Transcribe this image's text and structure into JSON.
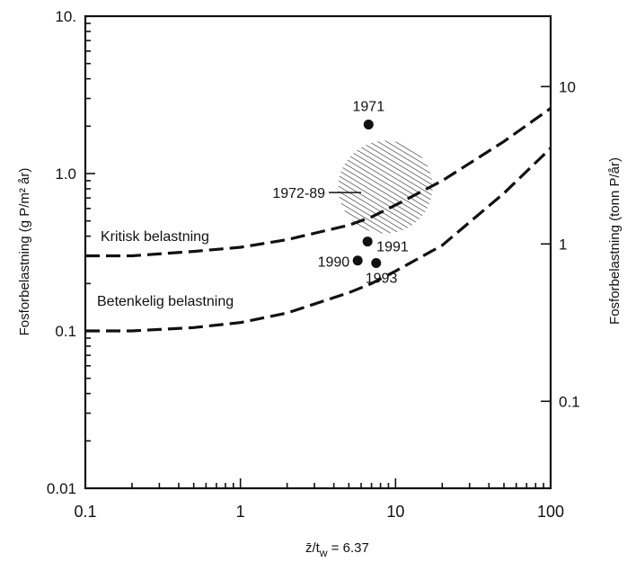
{
  "chart_data": {
    "type": "scatter",
    "title": "",
    "xlabel_parts": {
      "zbar": "z̄",
      "slash": "/t",
      "sub": "w",
      "eq": " = 6.37"
    },
    "ylabel": "Fosforbelastning (g P/m² år)",
    "y2label": "Fosforbelastning (tonn P/år)",
    "x_scale": "log",
    "y_scale": "log",
    "xlim": [
      0.1,
      100
    ],
    "ylim": [
      0.01,
      10
    ],
    "x_ticks": [
      {
        "value": 0.1,
        "label": "0.1"
      },
      {
        "value": 1,
        "label": "1"
      },
      {
        "value": 10,
        "label": "10"
      },
      {
        "value": 100,
        "label": "100"
      }
    ],
    "y_ticks": [
      {
        "value": 0.01,
        "label": "0.01"
      },
      {
        "value": 0.1,
        "label": "0.1"
      },
      {
        "value": 1,
        "label": "1.0"
      },
      {
        "value": 10,
        "label": "10."
      }
    ],
    "y2_ticks": [
      {
        "value": 0.0357,
        "label": "0.1"
      },
      {
        "value": 0.357,
        "label": "1"
      },
      {
        "value": 3.57,
        "label": "10"
      }
    ],
    "grid": false,
    "series": [
      {
        "name": "Kritisk belastning",
        "style": "dashed",
        "x": [
          0.1,
          0.2,
          0.5,
          1,
          2,
          5,
          7,
          10,
          20,
          50,
          100
        ],
        "y": [
          0.3,
          0.3,
          0.32,
          0.34,
          0.38,
          0.47,
          0.53,
          0.63,
          0.9,
          1.6,
          2.6
        ]
      },
      {
        "name": "Betenkelig belastning",
        "style": "dashed",
        "x": [
          0.1,
          0.2,
          0.5,
          1,
          2,
          5,
          7,
          10,
          20,
          50,
          100
        ],
        "y": [
          0.1,
          0.1,
          0.105,
          0.113,
          0.13,
          0.175,
          0.2,
          0.24,
          0.35,
          0.75,
          1.45
        ]
      }
    ],
    "points": [
      {
        "label": "1971",
        "x": 6.7,
        "y": 2.05
      },
      {
        "label": "1991",
        "x": 6.6,
        "y": 0.37
      },
      {
        "label": "1990",
        "x": 5.7,
        "y": 0.28
      },
      {
        "label": "1993",
        "x": 7.5,
        "y": 0.27
      }
    ],
    "region": {
      "label": "1972-89",
      "center_x": 8.6,
      "center_y": 0.82,
      "x_span": [
        4.3,
        17.5
      ],
      "y_span": [
        0.36,
        1.4
      ]
    },
    "colors": {
      "ink": "#111111",
      "background": "#ffffff"
    }
  }
}
